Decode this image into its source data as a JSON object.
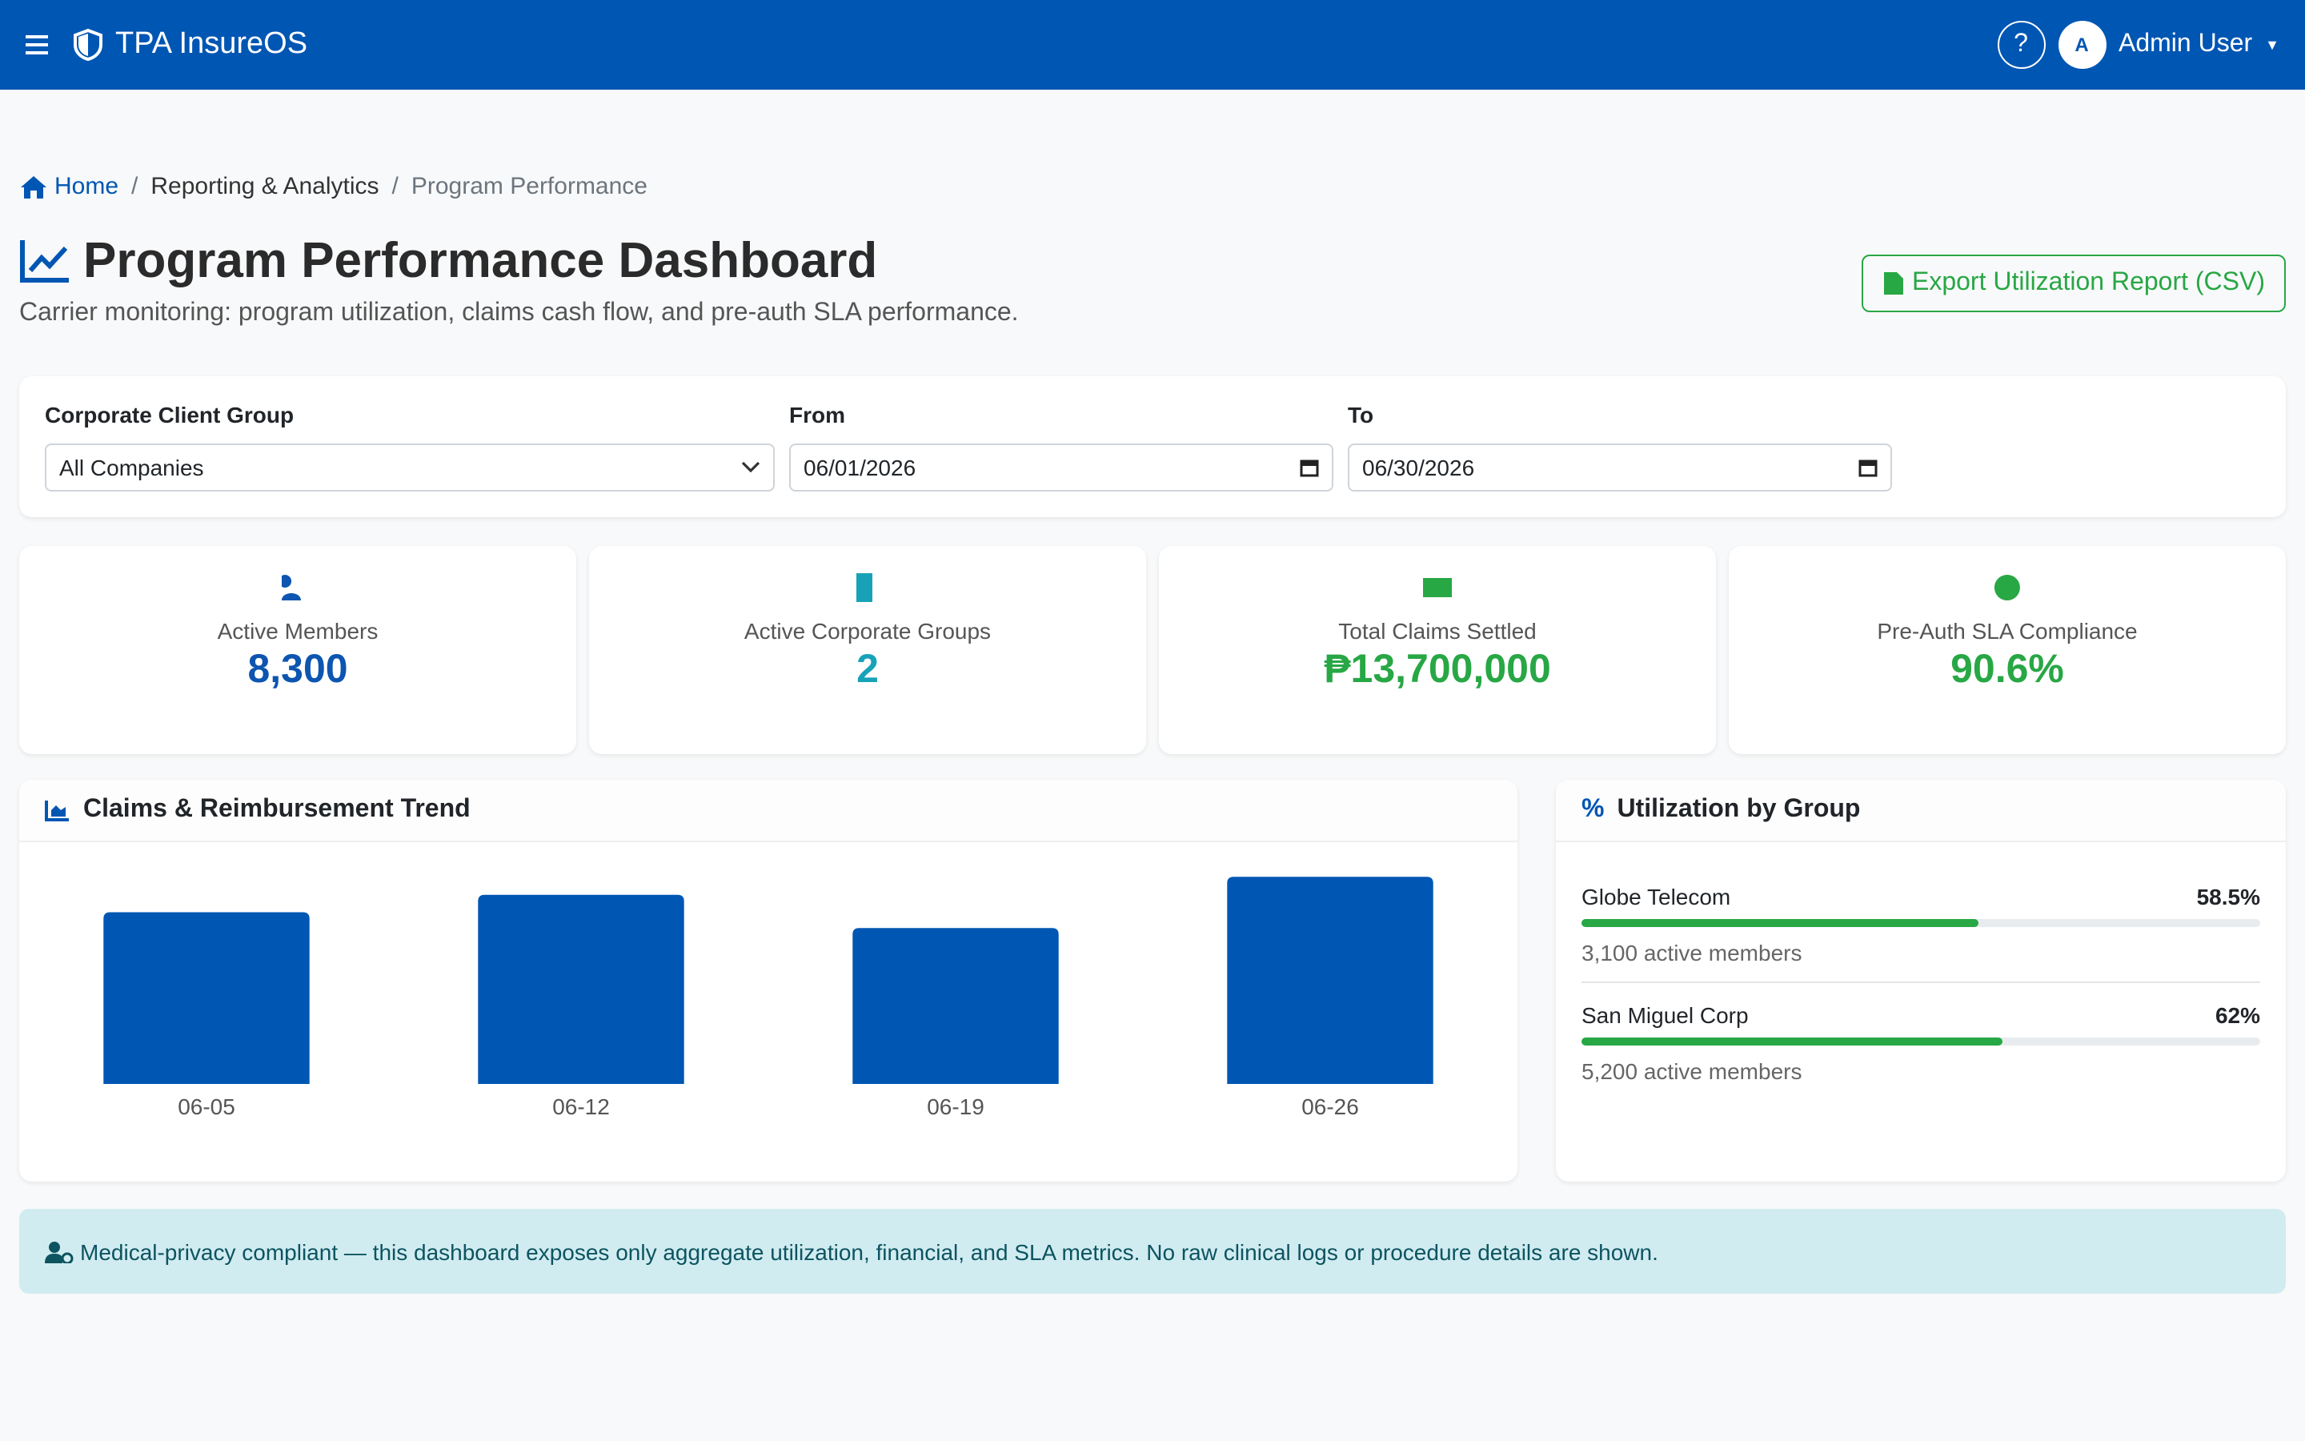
{
  "header": {
    "brand": "TPA InsureOS",
    "help": "?",
    "avatar": "A",
    "user": "Admin User"
  },
  "breadcrumb": [
    "Home",
    "Reporting & Analytics",
    "Program Performance"
  ],
  "page": {
    "title": "Program Performance Dashboard",
    "subtitle": "Carrier monitoring: program utilization, claims cash flow, and pre-auth SLA performance.",
    "export_button": "Export Utilization Report (CSV)"
  },
  "filters": {
    "group_label": "Corporate Client Group",
    "group_value": "All Companies",
    "from_label": "From",
    "from_value": "06/01/2026",
    "to_label": "To",
    "to_value": "06/30/2026"
  },
  "kpis": [
    {
      "label": "Active Members",
      "value": "8,300",
      "color": "#0d55b0"
    },
    {
      "label": "Active Corporate Groups",
      "value": "2",
      "color": "#17a2b8"
    },
    {
      "label": "Total Claims Settled",
      "value": "₱13,700,000",
      "color": "#28a745"
    },
    {
      "label": "Pre-Auth SLA Compliance",
      "value": "90.6%",
      "color": "#28a745"
    }
  ],
  "chart_data": {
    "type": "bar",
    "title": "Claims & Reimbursement Trend",
    "categories": [
      "06-05",
      "06-12",
      "06-19",
      "06-26"
    ],
    "values": [
      3250000,
      3580000,
      2950000,
      3920000
    ],
    "color": "#0056b3",
    "ylim": [
      0,
      4000000
    ]
  },
  "utilization": {
    "title": "Utilization by Group",
    "groups": [
      {
        "name": "Globe Telecom",
        "percent": 58.5,
        "percent_label": "58.5%",
        "members": "3,100 active members"
      },
      {
        "name": "San Miguel Corp",
        "percent": 62,
        "percent_label": "62%",
        "members": "5,200 active members"
      }
    ]
  },
  "notice": "Medical-privacy compliant — this dashboard exposes only aggregate utilization, financial, and SLA metrics. No raw clinical logs or procedure details are shown."
}
